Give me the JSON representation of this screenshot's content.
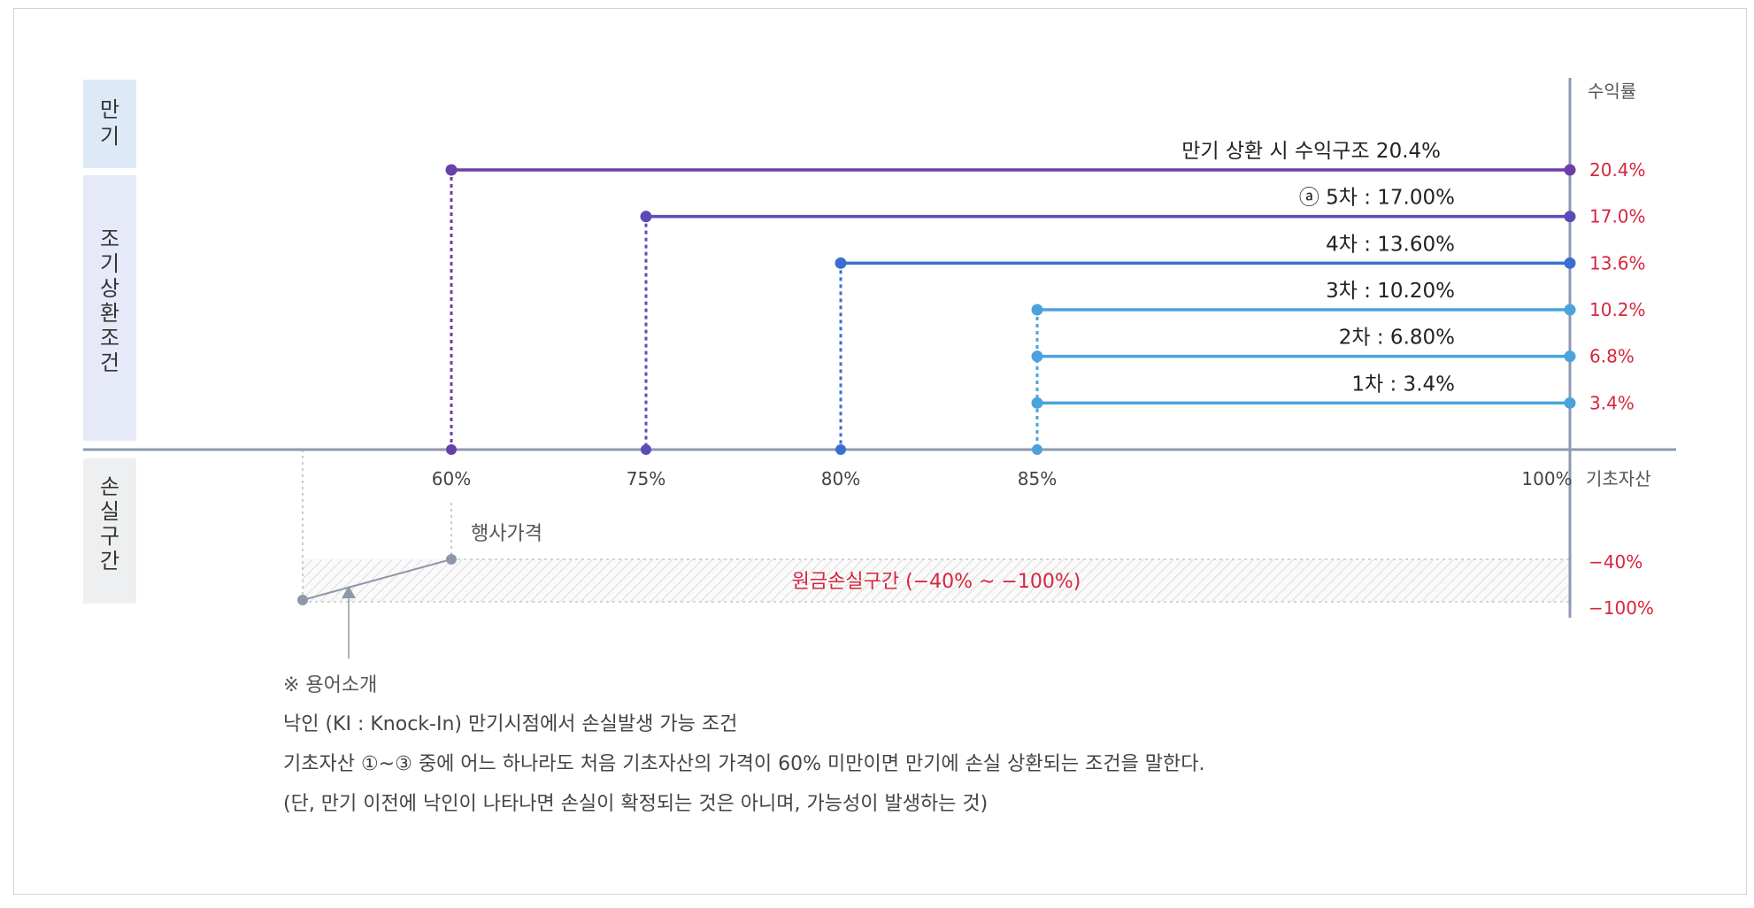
{
  "sections": {
    "maturity": "만기",
    "early_redemption": "조기상환조건",
    "loss_zone": "손실구간"
  },
  "axis": {
    "y_title": "수익률",
    "x_title": "기초자산",
    "x_ticks": [
      {
        "value": 60,
        "label": "60%"
      },
      {
        "value": 75,
        "label": "75%"
      },
      {
        "value": 80,
        "label": "80%"
      },
      {
        "value": 85,
        "label": "85%"
      },
      {
        "value": 100,
        "label": "100%"
      }
    ]
  },
  "payoffs": [
    {
      "barrier": 60,
      "rate": 20.4,
      "line_label": "만기 상환 시 수익구조  20.4%",
      "rate_label": "20.4%",
      "color": "#6a3fa8"
    },
    {
      "barrier": 75,
      "rate": 17.0,
      "line_label": "ⓐ 5차 : 17.00%",
      "rate_label": "17.0%",
      "color": "#5a4cb8"
    },
    {
      "barrier": 80,
      "rate": 13.6,
      "line_label": "4차 : 13.60%",
      "rate_label": "13.6%",
      "color": "#3a6fd0"
    },
    {
      "barrier": 85,
      "rate": 10.2,
      "line_label": "3차 : 10.20%",
      "rate_label": "10.2%",
      "color": "#4aa3dc"
    },
    {
      "barrier": 85,
      "rate": 6.8,
      "line_label": "2차 : 6.80%",
      "rate_label": "6.8%",
      "color": "#4aa3dc"
    },
    {
      "barrier": 85,
      "rate": 3.4,
      "line_label": "1차 : 3.4%",
      "rate_label": "3.4%",
      "color": "#4aa3dc"
    }
  ],
  "loss": {
    "strike_label": "행사가격",
    "zone_label": "원금손실구간 (−40% ~ −100%)",
    "upper_label": "−40%",
    "lower_label": "−100%",
    "color": "#d7263d"
  },
  "notes": {
    "heading": "※ 용어소개",
    "line1": "낙인 (KI : Knock-In) 만기시점에서 손실발생 가능 조건",
    "line2": "기초자산 ①~③ 중에 어느 하나라도 처음 기초자산의 가격이 60% 미만이면 만기에 손실 상환되는 조건을 말한다.",
    "line3": "(단, 만기 이전에 낙인이 나타나면 손실이 확정되는 것은 아니며, 가능성이 발생하는 것)"
  }
}
